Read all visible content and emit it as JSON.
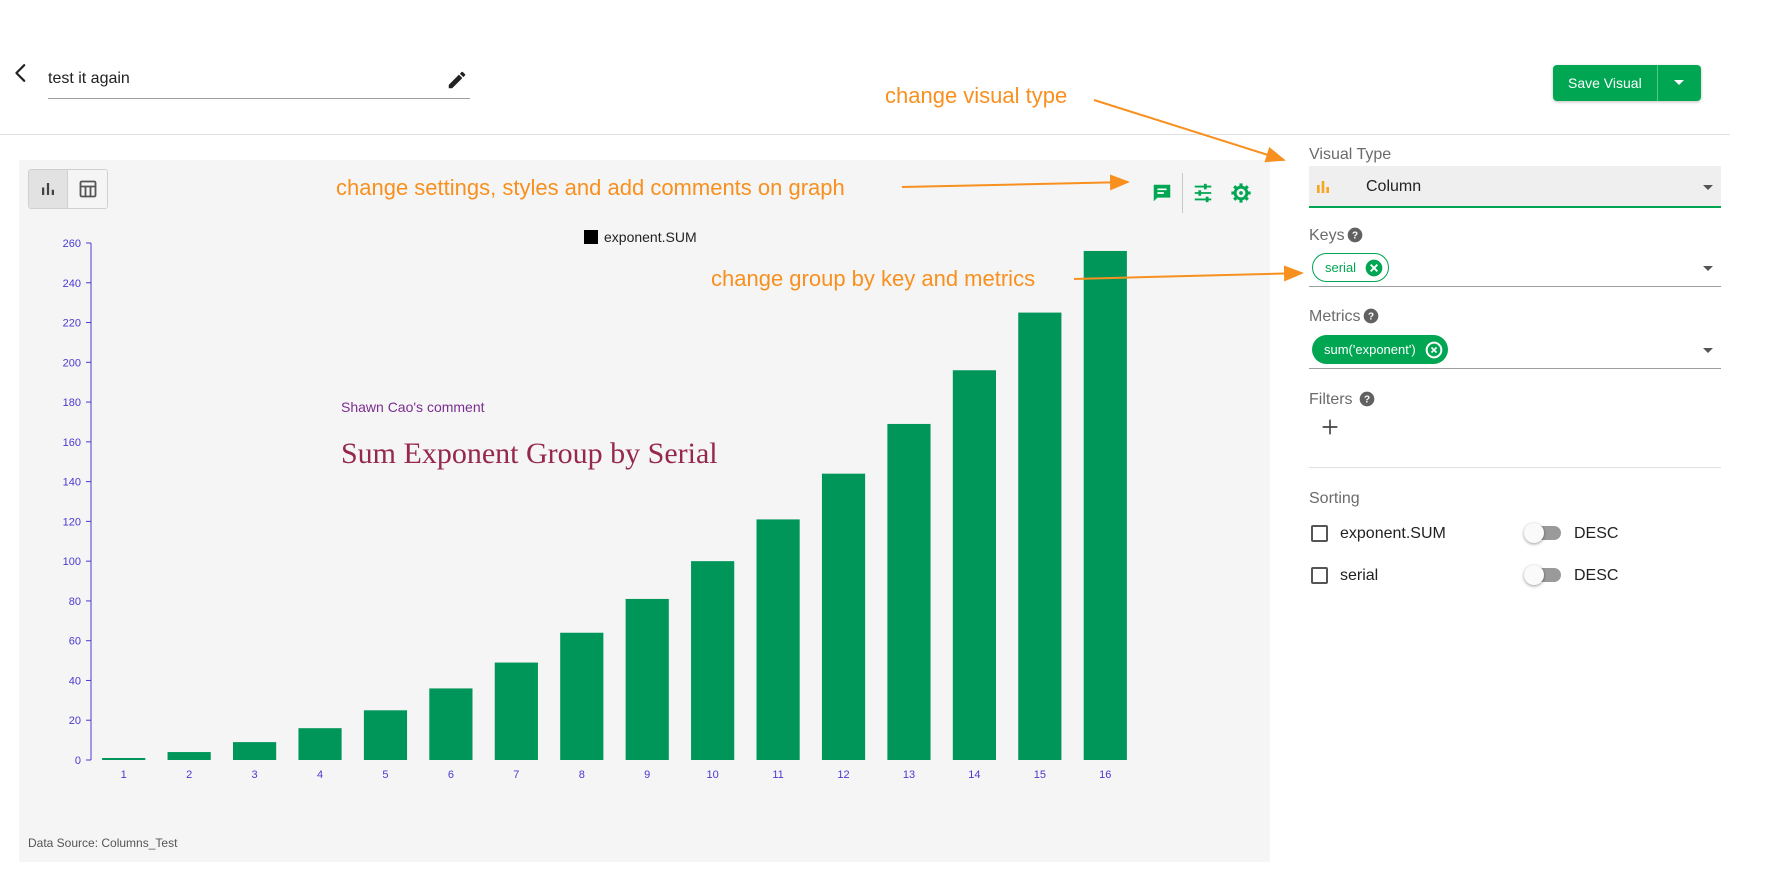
{
  "header": {
    "visual_name": "test it again",
    "save_label": "Save Visual"
  },
  "card": {
    "data_source": "Data Source: Columns_Test",
    "comment": {
      "author": "Shawn Cao's comment",
      "text": "Sum Exponent Group by Serial"
    }
  },
  "chart_data": {
    "type": "bar",
    "categories": [
      "1",
      "2",
      "3",
      "4",
      "5",
      "6",
      "7",
      "8",
      "9",
      "10",
      "11",
      "12",
      "13",
      "14",
      "15",
      "16"
    ],
    "series": [
      {
        "name": "exponent.SUM",
        "values": [
          1,
          4,
          9,
          16,
          25,
          36,
          49,
          64,
          81,
          100,
          121,
          144,
          169,
          196,
          225,
          256
        ]
      }
    ],
    "yticks": [
      0,
      20,
      40,
      60,
      80,
      100,
      120,
      140,
      160,
      180,
      200,
      220,
      240,
      260
    ],
    "ylim": [
      0,
      260
    ],
    "legend": "top-center",
    "grid": false,
    "bar_color": "#00965a"
  },
  "panel": {
    "visual_type_label": "Visual Type",
    "visual_type_value": "Column",
    "keys_label": "Keys",
    "key_chip": "serial",
    "metrics_label": "Metrics",
    "metric_chip": "sum('exponent')",
    "filters_label": "Filters",
    "sorting_label": "Sorting",
    "sorting": [
      {
        "field": "exponent.SUM",
        "order": "DESC"
      },
      {
        "field": "serial",
        "order": "DESC"
      }
    ]
  },
  "annotations": {
    "visual_type": "change visual type",
    "settings": "change settings, styles and add comments on graph",
    "keys": "change group by key and metrics"
  },
  "colors": {
    "accent": "#00a651",
    "annotation": "#f7901e",
    "axis": "#4a3ad0"
  }
}
